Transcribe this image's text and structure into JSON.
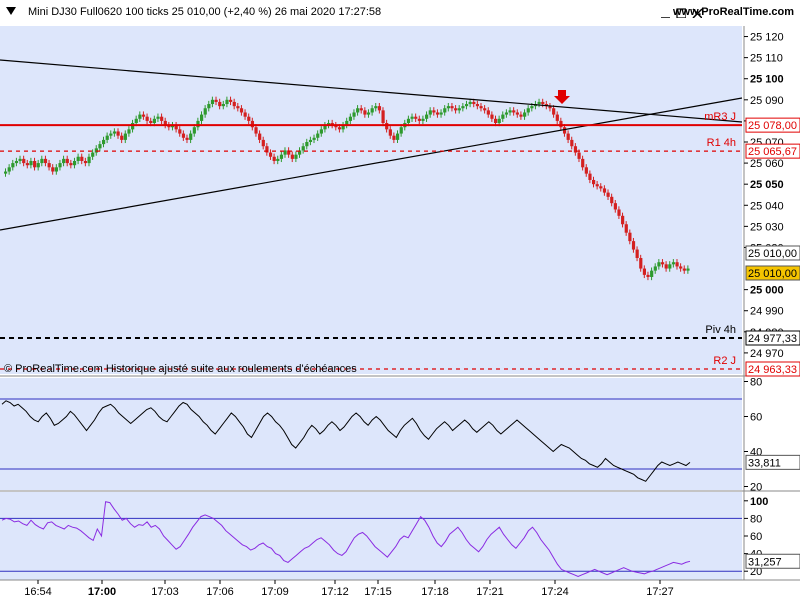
{
  "header": {
    "title": "Mini DJ30 Full0620 100 ticks 25 010,00 (+2,40 %) 26 mai 2020 17:27:58",
    "site": "www.ProRealTime.com"
  },
  "colors": {
    "panel_bg": "#dde6fb",
    "up_candle": "#2e9a2e",
    "down_candle": "#d42020",
    "resistance": "#e00000",
    "trendline": "#000000",
    "indicator_line": "#000000",
    "rsi_line": "#8a2be2",
    "band_line": "#3030c0",
    "price_tag": "#f5c400"
  },
  "watermark": "© ProRealTime.com  Historique ajusté suite aux roulements d'échéances",
  "levels": [
    {
      "name": "mR3 J",
      "value": 25078.0,
      "label": "25 078,00",
      "style": "solid",
      "color": "#e00000"
    },
    {
      "name": "R1 4h",
      "value": 25065.67,
      "label": "25 065,67",
      "style": "dashed",
      "color": "#e00000"
    },
    {
      "name": "Piv 4h",
      "value": 24977.33,
      "label": "24 977,33",
      "style": "dashed",
      "color": "#000000"
    },
    {
      "name": "R2 J",
      "value": 24963.33,
      "label": "24 963,33",
      "style": "dashed",
      "color": "#e00000"
    }
  ],
  "price_labels": {
    "last": "25 010,00",
    "last2": "25 010,00"
  },
  "osc_labels": {
    "osc1_last": "33,811",
    "osc2_last": "31,257"
  },
  "chart_data": [
    {
      "type": "candlestick",
      "title": "Mini DJ30 Full0620 100 ticks",
      "ylim": [
        24960,
        25125
      ],
      "y_ticks": [
        {
          "v": 25120,
          "t": "25 120"
        },
        {
          "v": 25110,
          "t": "25 110"
        },
        {
          "v": 25100,
          "t": "25 100"
        },
        {
          "v": 25090,
          "t": "25 090"
        },
        {
          "v": 25080,
          "t": ""
        },
        {
          "v": 25070,
          "t": "25 070"
        },
        {
          "v": 25060,
          "t": "25 060"
        },
        {
          "v": 25050,
          "t": "25 050"
        },
        {
          "v": 25040,
          "t": "25 040"
        },
        {
          "v": 25030,
          "t": "25 030"
        },
        {
          "v": 25020,
          "t": "25 020"
        },
        {
          "v": 25000,
          "t": "25 000"
        },
        {
          "v": 24990,
          "t": "24 990"
        },
        {
          "v": 24980,
          "t": "24 980"
        },
        {
          "v": 24970,
          "t": "24 970"
        }
      ],
      "x_ticks": [
        "16:54",
        "17:00",
        "17:03",
        "17:06",
        "17:09",
        "17:12",
        "17:15",
        "17:18",
        "17:21",
        "17:24",
        "17:27"
      ],
      "closes": [
        25056,
        25058,
        25060,
        25061,
        25062,
        25060,
        25059,
        25061,
        25058,
        25060,
        25062,
        25060,
        25058,
        25056,
        25058,
        25060,
        25062,
        25060,
        25059,
        25061,
        25063,
        25061,
        25060,
        25063,
        25065,
        25067,
        25069,
        25071,
        25073,
        25074,
        25075,
        25073,
        25071,
        25074,
        25076,
        25079,
        25081,
        25083,
        25082,
        25080,
        25079,
        25081,
        25082,
        25080,
        25078,
        25077,
        25078,
        25076,
        25074,
        25072,
        25071,
        25074,
        25077,
        25080,
        25083,
        25086,
        25088,
        25090,
        25089,
        25087,
        25088,
        25090,
        25089,
        25087,
        25086,
        25084,
        25082,
        25080,
        25077,
        25074,
        25071,
        25068,
        25065,
        25063,
        25061,
        25062,
        25064,
        25066,
        25064,
        25062,
        25064,
        25066,
        25068,
        25070,
        25071,
        25072,
        25074,
        25076,
        25078,
        25079,
        25078,
        25077,
        25076,
        25078,
        25080,
        25082,
        25084,
        25086,
        25085,
        25083,
        25084,
        25086,
        25087,
        25085,
        25079,
        25076,
        25073,
        25071,
        25074,
        25077,
        25079,
        25081,
        25082,
        25081,
        25080,
        25081,
        25083,
        25085,
        25084,
        25083,
        25084,
        25086,
        25087,
        25086,
        25085,
        25086,
        25087,
        25088,
        25089,
        25088,
        25087,
        25086,
        25085,
        25083,
        25081,
        25079,
        25081,
        25083,
        25084,
        25085,
        25084,
        25083,
        25082,
        25084,
        25086,
        25087,
        25088,
        25089,
        25088,
        25087,
        25086,
        25083,
        25080,
        25077,
        25074,
        25071,
        25068,
        25065,
        25062,
        25058,
        25055,
        25052,
        25050,
        25049,
        25048,
        25046,
        25044,
        25041,
        25038,
        25035,
        25031,
        25027,
        25023,
        25019,
        25015,
        25010,
        25007,
        25006,
        25009,
        25011,
        25013,
        25012,
        25010,
        25012,
        25013,
        25011,
        25010,
        25009,
        25010
      ]
    },
    {
      "type": "line",
      "ylim": [
        18,
        82
      ],
      "y_ticks": [
        {
          "v": 80,
          "t": "80"
        },
        {
          "v": 60,
          "t": "60"
        },
        {
          "v": 40,
          "t": "40"
        },
        {
          "v": 20,
          "t": "20"
        }
      ],
      "band": [
        70,
        30
      ],
      "values": [
        67,
        69,
        68,
        66,
        67,
        65,
        63,
        60,
        58,
        57,
        60,
        62,
        59,
        55,
        56,
        58,
        60,
        63,
        61,
        58,
        55,
        52,
        55,
        58,
        62,
        65,
        66,
        67,
        65,
        62,
        60,
        58,
        56,
        58,
        60,
        62,
        64,
        65,
        63,
        60,
        58,
        57,
        60,
        63,
        66,
        68,
        67,
        64,
        62,
        60,
        57,
        55,
        52,
        50,
        53,
        56,
        59,
        62,
        60,
        57,
        54,
        50,
        48,
        52,
        56,
        60,
        62,
        60,
        57,
        55,
        52,
        48,
        44,
        42,
        45,
        48,
        52,
        55,
        53,
        50,
        52,
        55,
        57,
        55,
        52,
        54,
        57,
        60,
        62,
        60,
        57,
        55,
        58,
        60,
        58,
        55,
        52,
        50,
        48,
        52,
        55,
        57,
        59,
        56,
        52,
        49,
        47,
        50,
        53,
        55,
        57,
        55,
        52,
        54,
        56,
        58,
        56,
        53,
        51,
        53,
        55,
        57,
        55,
        52,
        50,
        52,
        54,
        56,
        58,
        56,
        54,
        52,
        50,
        48,
        46,
        44,
        42,
        40,
        42,
        44,
        43,
        42,
        40,
        38,
        36,
        35,
        33,
        32,
        31,
        33,
        36,
        34,
        32,
        31,
        30,
        29,
        28,
        27,
        25,
        24,
        23,
        26,
        29,
        32,
        34,
        33,
        32,
        33,
        34,
        33,
        32,
        33.8
      ]
    },
    {
      "type": "line",
      "ylim": [
        10,
        110
      ],
      "y_ticks": [
        {
          "v": 100,
          "t": "100"
        },
        {
          "v": 80,
          "t": "80"
        },
        {
          "v": 60,
          "t": "60"
        },
        {
          "v": 40,
          "t": "40"
        },
        {
          "v": 20,
          "t": "20"
        }
      ],
      "band": [
        80,
        20
      ],
      "values": [
        78,
        80,
        79,
        76,
        77,
        74,
        72,
        78,
        73,
        70,
        68,
        75,
        76,
        72,
        70,
        68,
        72,
        70,
        69,
        66,
        62,
        58,
        55,
        68,
        60,
        99,
        98,
        91,
        85,
        78,
        80,
        74,
        70,
        73,
        72,
        76,
        70,
        72,
        68,
        60,
        55,
        50,
        45,
        48,
        55,
        62,
        70,
        76,
        82,
        84,
        82,
        80,
        76,
        72,
        66,
        62,
        58,
        54,
        50,
        48,
        44,
        46,
        50,
        52,
        48,
        46,
        40,
        38,
        32,
        30,
        34,
        38,
        42,
        46,
        48,
        52,
        56,
        58,
        54,
        50,
        44,
        40,
        38,
        42,
        50,
        58,
        62,
        64,
        60,
        54,
        48,
        44,
        40,
        36,
        42,
        48,
        56,
        60,
        58,
        66,
        74,
        82,
        78,
        70,
        60,
        52,
        48,
        54,
        62,
        66,
        70,
        64,
        56,
        50,
        46,
        42,
        48,
        56,
        62,
        66,
        70,
        62,
        56,
        50,
        46,
        52,
        58,
        66,
        70,
        64,
        56,
        50,
        44,
        36,
        28,
        22,
        20,
        18,
        16,
        14,
        16,
        18,
        20,
        22,
        20,
        18,
        16,
        18,
        20,
        22,
        24,
        22,
        20,
        19,
        18,
        17,
        19,
        20,
        22,
        24,
        26,
        28,
        30,
        29,
        28,
        30,
        31.3
      ]
    }
  ]
}
